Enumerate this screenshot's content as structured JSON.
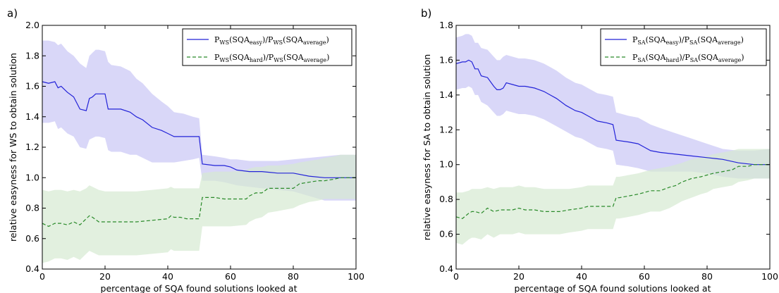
{
  "colors": {
    "easy_line": "#2323d8",
    "easy_band": "#cccaf5",
    "hard_line": "#2a8a2a",
    "hard_band": "#d6ead2",
    "overlap_band": "#b4c8d6"
  },
  "chart_data": [
    {
      "panel_label": "a)",
      "type": "line",
      "xlabel": "percentage of SQA found solutions looked at",
      "ylabel": "relative easyness for WS to obtain solution",
      "xlim": [
        0,
        100
      ],
      "ylim": [
        0.4,
        2.0
      ],
      "xticks": [
        "0",
        "20",
        "40",
        "60",
        "80",
        "100"
      ],
      "yticks": [
        "0.4",
        "0.6",
        "0.8",
        "1.0",
        "1.2",
        "1.4",
        "1.6",
        "1.8",
        "2.0"
      ],
      "legend_position": "top-right",
      "legend": [
        {
          "P": "P",
          "sub1": "WS",
          "mid": "(SQA",
          "cls": "easy",
          "slash": ")/P",
          "sub2": "WS",
          "tail": "(SQA",
          "avg": "average",
          "end": ")"
        },
        {
          "P": "P",
          "sub1": "WS",
          "mid": "(SQA",
          "cls": "hard",
          "slash": ")/P",
          "sub2": "WS",
          "tail": "(SQA",
          "avg": "average",
          "end": ")"
        }
      ],
      "series": [
        {
          "style": "solid",
          "x": [
            0,
            2,
            4,
            5,
            6,
            8,
            10,
            12,
            14,
            15,
            16,
            17,
            18,
            20,
            21,
            22,
            25,
            28,
            30,
            32,
            35,
            38,
            40,
            42,
            45,
            48,
            50,
            51,
            55,
            58,
            60,
            62,
            66,
            70,
            75,
            80,
            85,
            90,
            95,
            100
          ],
          "y": [
            1.63,
            1.62,
            1.63,
            1.59,
            1.6,
            1.56,
            1.53,
            1.45,
            1.44,
            1.52,
            1.53,
            1.55,
            1.55,
            1.55,
            1.45,
            1.45,
            1.45,
            1.43,
            1.4,
            1.38,
            1.33,
            1.31,
            1.29,
            1.27,
            1.27,
            1.27,
            1.27,
            1.09,
            1.08,
            1.08,
            1.07,
            1.05,
            1.04,
            1.04,
            1.03,
            1.03,
            1.01,
            1.0,
            1.0,
            1.0
          ],
          "band_upper": [
            1.9,
            1.9,
            1.89,
            1.87,
            1.88,
            1.83,
            1.8,
            1.75,
            1.72,
            1.8,
            1.82,
            1.84,
            1.84,
            1.83,
            1.76,
            1.74,
            1.73,
            1.7,
            1.65,
            1.62,
            1.55,
            1.5,
            1.47,
            1.43,
            1.42,
            1.4,
            1.39,
            1.15,
            1.14,
            1.13,
            1.12,
            1.12,
            1.11,
            1.11,
            1.11,
            1.12,
            1.13,
            1.14,
            1.15,
            1.15
          ],
          "band_lower": [
            1.36,
            1.36,
            1.37,
            1.32,
            1.33,
            1.29,
            1.27,
            1.2,
            1.19,
            1.25,
            1.26,
            1.27,
            1.27,
            1.26,
            1.18,
            1.17,
            1.17,
            1.15,
            1.15,
            1.13,
            1.1,
            1.1,
            1.1,
            1.1,
            1.11,
            1.12,
            1.13,
            0.98,
            0.98,
            0.97,
            0.96,
            0.95,
            0.94,
            0.93,
            0.92,
            0.91,
            0.88,
            0.85,
            0.85,
            0.85
          ]
        },
        {
          "style": "dashed",
          "x": [
            0,
            2,
            4,
            6,
            8,
            10,
            12,
            14,
            15,
            16,
            18,
            20,
            25,
            30,
            35,
            40,
            41,
            42,
            44,
            46,
            48,
            50,
            51,
            55,
            58,
            60,
            65,
            66,
            68,
            70,
            72,
            75,
            80,
            82,
            85,
            88,
            90,
            93,
            95,
            100
          ],
          "y": [
            0.7,
            0.68,
            0.7,
            0.7,
            0.69,
            0.71,
            0.69,
            0.73,
            0.75,
            0.74,
            0.71,
            0.71,
            0.71,
            0.71,
            0.72,
            0.73,
            0.75,
            0.74,
            0.74,
            0.73,
            0.73,
            0.73,
            0.87,
            0.87,
            0.86,
            0.86,
            0.86,
            0.88,
            0.9,
            0.9,
            0.93,
            0.93,
            0.93,
            0.96,
            0.97,
            0.98,
            0.98,
            0.99,
            1.0,
            1.0
          ],
          "band_upper": [
            0.92,
            0.91,
            0.92,
            0.92,
            0.91,
            0.92,
            0.91,
            0.93,
            0.95,
            0.94,
            0.92,
            0.91,
            0.91,
            0.91,
            0.92,
            0.93,
            0.94,
            0.93,
            0.93,
            0.93,
            0.93,
            0.93,
            1.03,
            1.04,
            1.04,
            1.04,
            1.05,
            1.06,
            1.07,
            1.07,
            1.08,
            1.08,
            1.09,
            1.1,
            1.11,
            1.12,
            1.13,
            1.14,
            1.15,
            1.15
          ],
          "band_lower": [
            0.44,
            0.45,
            0.47,
            0.47,
            0.46,
            0.48,
            0.46,
            0.5,
            0.52,
            0.51,
            0.49,
            0.49,
            0.49,
            0.49,
            0.5,
            0.51,
            0.53,
            0.52,
            0.52,
            0.52,
            0.52,
            0.52,
            0.68,
            0.68,
            0.68,
            0.68,
            0.69,
            0.71,
            0.73,
            0.74,
            0.77,
            0.78,
            0.8,
            0.82,
            0.84,
            0.85,
            0.86,
            0.86,
            0.86,
            0.86
          ]
        }
      ]
    },
    {
      "panel_label": "b)",
      "type": "line",
      "xlabel": "percentage of SQA found solutions looked at",
      "ylabel": "relative easyness for SA to obtain solution",
      "xlim": [
        0,
        100
      ],
      "ylim": [
        0.4,
        1.8
      ],
      "xticks": [
        "0",
        "20",
        "40",
        "60",
        "80",
        "100"
      ],
      "yticks": [
        "0.4",
        "0.6",
        "0.8",
        "1.0",
        "1.2",
        "1.4",
        "1.6",
        "1.8"
      ],
      "legend_position": "top-right",
      "legend": [
        {
          "P": "P",
          "sub1": "SA",
          "mid": "(SQA",
          "cls": "easy",
          "slash": ")/P",
          "sub2": "SA",
          "tail": "(SQA",
          "avg": "average",
          "end": ")"
        },
        {
          "P": "P",
          "sub1": "SA",
          "mid": "(SQA",
          "cls": "hard",
          "slash": ")/P",
          "sub2": "SA",
          "tail": "(SQA",
          "avg": "average",
          "end": ")"
        }
      ],
      "series": [
        {
          "style": "solid",
          "x": [
            0,
            2,
            3,
            4,
            5,
            6,
            7,
            8,
            10,
            12,
            13,
            14,
            15,
            16,
            18,
            20,
            22,
            25,
            28,
            30,
            32,
            35,
            38,
            40,
            42,
            45,
            48,
            50,
            51,
            55,
            58,
            60,
            62,
            65,
            70,
            75,
            80,
            85,
            90,
            95,
            100
          ],
          "y": [
            1.58,
            1.59,
            1.59,
            1.6,
            1.59,
            1.55,
            1.55,
            1.51,
            1.5,
            1.45,
            1.43,
            1.43,
            1.44,
            1.47,
            1.46,
            1.45,
            1.45,
            1.44,
            1.42,
            1.4,
            1.38,
            1.34,
            1.31,
            1.3,
            1.28,
            1.25,
            1.24,
            1.23,
            1.14,
            1.13,
            1.12,
            1.1,
            1.08,
            1.07,
            1.06,
            1.05,
            1.04,
            1.03,
            1.01,
            1.0,
            1.0
          ],
          "band_upper": [
            1.73,
            1.74,
            1.75,
            1.75,
            1.74,
            1.7,
            1.7,
            1.67,
            1.66,
            1.62,
            1.6,
            1.6,
            1.62,
            1.63,
            1.62,
            1.61,
            1.61,
            1.6,
            1.58,
            1.56,
            1.54,
            1.5,
            1.47,
            1.46,
            1.44,
            1.41,
            1.4,
            1.39,
            1.3,
            1.28,
            1.27,
            1.25,
            1.23,
            1.21,
            1.18,
            1.15,
            1.12,
            1.09,
            1.08,
            1.08,
            1.09
          ],
          "band_lower": [
            1.43,
            1.44,
            1.44,
            1.45,
            1.44,
            1.4,
            1.4,
            1.36,
            1.34,
            1.3,
            1.28,
            1.28,
            1.29,
            1.31,
            1.3,
            1.29,
            1.29,
            1.28,
            1.26,
            1.24,
            1.22,
            1.19,
            1.16,
            1.15,
            1.13,
            1.1,
            1.09,
            1.08,
            1.0,
            0.99,
            0.98,
            0.97,
            0.96,
            0.96,
            0.96,
            0.96,
            0.95,
            0.93,
            0.92,
            0.92,
            0.92
          ]
        },
        {
          "style": "dashed",
          "x": [
            0,
            2,
            4,
            5,
            6,
            8,
            10,
            12,
            14,
            16,
            18,
            20,
            22,
            25,
            28,
            30,
            33,
            36,
            40,
            42,
            45,
            48,
            50,
            51,
            52,
            55,
            58,
            60,
            62,
            65,
            68,
            70,
            72,
            75,
            78,
            80,
            82,
            85,
            88,
            90,
            93,
            95,
            100
          ],
          "y": [
            0.7,
            0.69,
            0.72,
            0.73,
            0.73,
            0.72,
            0.75,
            0.73,
            0.74,
            0.74,
            0.74,
            0.75,
            0.74,
            0.74,
            0.73,
            0.73,
            0.73,
            0.74,
            0.75,
            0.76,
            0.76,
            0.76,
            0.76,
            0.81,
            0.81,
            0.82,
            0.83,
            0.84,
            0.85,
            0.85,
            0.87,
            0.88,
            0.9,
            0.92,
            0.93,
            0.94,
            0.95,
            0.96,
            0.97,
            0.99,
            0.99,
            1.0,
            1.0
          ],
          "band_upper": [
            0.84,
            0.84,
            0.85,
            0.86,
            0.86,
            0.86,
            0.87,
            0.86,
            0.87,
            0.87,
            0.87,
            0.88,
            0.87,
            0.87,
            0.86,
            0.86,
            0.86,
            0.86,
            0.87,
            0.88,
            0.88,
            0.88,
            0.88,
            0.93,
            0.93,
            0.94,
            0.95,
            0.96,
            0.97,
            0.98,
            0.99,
            1.0,
            1.01,
            1.03,
            1.04,
            1.05,
            1.06,
            1.07,
            1.08,
            1.09,
            1.09,
            1.09,
            1.09
          ],
          "band_lower": [
            0.55,
            0.54,
            0.57,
            0.58,
            0.58,
            0.57,
            0.6,
            0.58,
            0.6,
            0.6,
            0.6,
            0.61,
            0.6,
            0.6,
            0.6,
            0.6,
            0.6,
            0.61,
            0.62,
            0.63,
            0.63,
            0.63,
            0.63,
            0.69,
            0.69,
            0.7,
            0.71,
            0.72,
            0.73,
            0.73,
            0.75,
            0.77,
            0.79,
            0.81,
            0.83,
            0.84,
            0.86,
            0.87,
            0.88,
            0.9,
            0.91,
            0.92,
            0.92
          ]
        }
      ]
    }
  ]
}
